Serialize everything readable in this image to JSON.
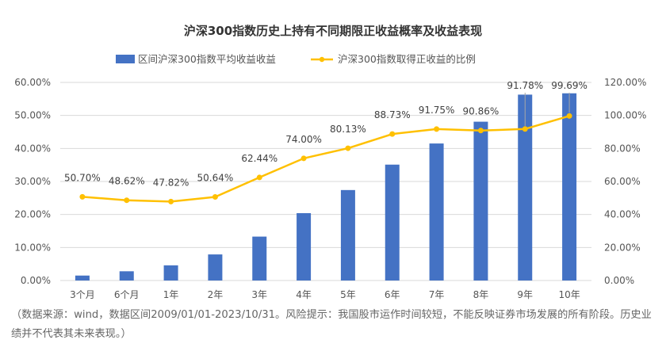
{
  "colors": {
    "bar": "#4472C4",
    "line": "#FFC000",
    "grid": "#d9d9d9",
    "label_line": "#a6a6a6"
  },
  "chart_data": {
    "type": "bar+line",
    "title": "沪深300指数历史上持有不同期限正收益概率及收益表现",
    "categories": [
      "3个月",
      "6个月",
      "1年",
      "2年",
      "3年",
      "4年",
      "5年",
      "6年",
      "7年",
      "8年",
      "9年",
      "10年"
    ],
    "series": [
      {
        "name": "区间沪深300指数平均收益收益",
        "type": "bar",
        "axis": "left",
        "values": [
          1.5,
          2.8,
          4.6,
          7.9,
          13.3,
          20.4,
          27.4,
          35.1,
          41.5,
          48.1,
          56.3,
          56.7
        ]
      },
      {
        "name": "沪深300指数取得正收益的比例",
        "type": "line",
        "axis": "right",
        "values": [
          50.7,
          48.62,
          47.82,
          50.64,
          62.44,
          74.0,
          80.13,
          88.73,
          91.75,
          90.86,
          91.78,
          99.69
        ],
        "labels": [
          "50.70%",
          "48.62%",
          "47.82%",
          "50.64%",
          "62.44%",
          "74.00%",
          "80.13%",
          "88.73%",
          "91.75%",
          "90.86%",
          "91.78%",
          "99.69%"
        ]
      }
    ],
    "y_left": {
      "ylim": [
        0,
        60
      ],
      "ticks": [
        "0.00%",
        "10.00%",
        "20.00%",
        "30.00%",
        "40.00%",
        "50.00%",
        "60.00%"
      ]
    },
    "y_right": {
      "ylim": [
        0,
        120
      ],
      "ticks": [
        "0.00%",
        "20.00%",
        "40.00%",
        "60.00%",
        "80.00%",
        "100.00%",
        "120.00%"
      ]
    },
    "grid": true,
    "legend": "top"
  },
  "note": "（数据来源：wind，数据区间2009/01/01-2023/10/31。风险提示：我国股市运作时间较短，不能反映证券市场发展的所有阶段。历史业绩并不代表其未来表现。）"
}
